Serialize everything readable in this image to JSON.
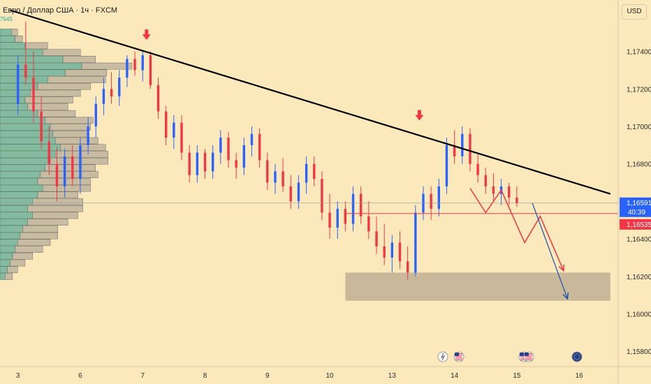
{
  "header": {
    "symbol_title": "Евро / Доллар США · 1ч · FXCM",
    "volume_profile_value": "7545",
    "currency_button": "USD"
  },
  "price_tags": {
    "last_price": "1,16591",
    "countdown": "40:39",
    "level_price": "1,16535"
  },
  "colors": {
    "background": "#fbe9bc",
    "up": "#2962ff",
    "down": "#f23645",
    "trendline": "#000000",
    "zone": "#c9b99a",
    "projection_red": "#f23645",
    "projection_blue": "#1e4fa8",
    "vp_up": "#6fb39b",
    "vp_down": "#bdb39c"
  },
  "event_icons": [
    "lightning-icon",
    "us-flag-icon",
    "us-flag-icon",
    "us-flag-icon",
    "eu-flag-icon"
  ],
  "chart_data": {
    "type": "candlestick",
    "title": "Евро / Доллар США · 1ч · FXCM",
    "ylim": [
      1.157,
      1.176
    ],
    "y_ticks": [
      "1,17400",
      "1,17200",
      "1,17000",
      "1,16800",
      "1,16600",
      "1,16400",
      "1,16200",
      "1,16000",
      "1,15800"
    ],
    "y_tick_values": [
      1.174,
      1.172,
      1.17,
      1.168,
      1.166,
      1.164,
      1.162,
      1.16,
      1.158
    ],
    "x_ticks": [
      "3",
      "6",
      "7",
      "8",
      "9",
      "10",
      "13",
      "14",
      "15",
      "16"
    ],
    "x_tick_values": [
      0,
      8,
      16,
      24,
      32,
      40,
      48,
      56,
      64,
      72
    ],
    "x_range": [
      -2.3,
      77
    ],
    "candles": [
      [
        1.1712,
        1.1738,
        1.1706,
        1.1733
      ],
      [
        1.1733,
        1.1756,
        1.1722,
        1.1726
      ],
      [
        1.1726,
        1.174,
        1.1702,
        1.1708
      ],
      [
        1.1708,
        1.1716,
        1.1688,
        1.1692
      ],
      [
        1.1692,
        1.17,
        1.1674,
        1.168
      ],
      [
        1.168,
        1.1689,
        1.166,
        1.1668
      ],
      [
        1.1668,
        1.1688,
        1.1662,
        1.1684
      ],
      [
        1.1684,
        1.169,
        1.1668,
        1.1672
      ],
      [
        1.1672,
        1.1694,
        1.1664,
        1.169
      ],
      [
        1.169,
        1.1705,
        1.1685,
        1.17
      ],
      [
        1.17,
        1.1716,
        1.1694,
        1.1712
      ],
      [
        1.1712,
        1.1726,
        1.1706,
        1.172
      ],
      [
        1.172,
        1.1729,
        1.1712,
        1.1716
      ],
      [
        1.1716,
        1.173,
        1.1711,
        1.1726
      ],
      [
        1.1726,
        1.1738,
        1.1721,
        1.1736
      ],
      [
        1.1736,
        1.174,
        1.1727,
        1.173
      ],
      [
        1.173,
        1.174,
        1.1724,
        1.1738
      ],
      [
        1.1738,
        1.174,
        1.172,
        1.1722
      ],
      [
        1.1722,
        1.1726,
        1.1704,
        1.1708
      ],
      [
        1.1708,
        1.1711,
        1.169,
        1.1694
      ],
      [
        1.1694,
        1.1706,
        1.1688,
        1.1702
      ],
      [
        1.1702,
        1.1706,
        1.1682,
        1.1686
      ],
      [
        1.1686,
        1.169,
        1.167,
        1.1674
      ],
      [
        1.1674,
        1.169,
        1.167,
        1.1686
      ],
      [
        1.1686,
        1.1688,
        1.1672,
        1.1676
      ],
      [
        1.1676,
        1.169,
        1.1672,
        1.1686
      ],
      [
        1.1686,
        1.1698,
        1.168,
        1.1694
      ],
      [
        1.1694,
        1.1697,
        1.1678,
        1.1682
      ],
      [
        1.1682,
        1.1686,
        1.1672,
        1.1678
      ],
      [
        1.1678,
        1.1694,
        1.1674,
        1.169
      ],
      [
        1.169,
        1.17,
        1.1684,
        1.1696
      ],
      [
        1.1696,
        1.1699,
        1.1678,
        1.1682
      ],
      [
        1.1682,
        1.1686,
        1.1666,
        1.167
      ],
      [
        1.167,
        1.168,
        1.1664,
        1.1676
      ],
      [
        1.1676,
        1.1683,
        1.1665,
        1.1668
      ],
      [
        1.1668,
        1.1674,
        1.1656,
        1.166
      ],
      [
        1.166,
        1.1674,
        1.1656,
        1.167
      ],
      [
        1.167,
        1.1684,
        1.1664,
        1.168
      ],
      [
        1.168,
        1.1684,
        1.1668,
        1.1672
      ],
      [
        1.1672,
        1.1676,
        1.165,
        1.1654
      ],
      [
        1.1654,
        1.1664,
        1.164,
        1.1646
      ],
      [
        1.1646,
        1.166,
        1.164,
        1.1656
      ],
      [
        1.1656,
        1.166,
        1.1644,
        1.1648
      ],
      [
        1.1648,
        1.1668,
        1.1644,
        1.1664
      ],
      [
        1.1664,
        1.1668,
        1.1648,
        1.1652
      ],
      [
        1.1652,
        1.166,
        1.164,
        1.1644
      ],
      [
        1.1644,
        1.1652,
        1.1632,
        1.1636
      ],
      [
        1.1636,
        1.1648,
        1.1626,
        1.163
      ],
      [
        1.163,
        1.1642,
        1.1622,
        1.1638
      ],
      [
        1.1638,
        1.1644,
        1.1624,
        1.1628
      ],
      [
        1.1628,
        1.1636,
        1.1618,
        1.1622
      ],
      [
        1.1622,
        1.1658,
        1.162,
        1.1654
      ],
      [
        1.1654,
        1.1668,
        1.165,
        1.1664
      ],
      [
        1.1664,
        1.1668,
        1.165,
        1.1656
      ],
      [
        1.1656,
        1.1672,
        1.1652,
        1.1668
      ],
      [
        1.1668,
        1.1694,
        1.1664,
        1.169
      ],
      [
        1.169,
        1.1698,
        1.168,
        1.1684
      ],
      [
        1.1684,
        1.17,
        1.168,
        1.1696
      ],
      [
        1.1696,
        1.1699,
        1.1676,
        1.168
      ],
      [
        1.168,
        1.1686,
        1.167,
        1.1674
      ],
      [
        1.1674,
        1.1678,
        1.1664,
        1.1668
      ],
      [
        1.1668,
        1.1675,
        1.166,
        1.1664
      ],
      [
        1.1664,
        1.1672,
        1.1658,
        1.1668
      ],
      [
        1.1668,
        1.167,
        1.1658,
        1.1662
      ],
      [
        1.1662,
        1.1668,
        1.1657,
        1.1659
      ]
    ],
    "trendline": [
      [
        -1,
        1.1762
      ],
      [
        76,
        1.1664
      ]
    ],
    "support_zone": {
      "x": [
        42,
        76
      ],
      "y": [
        1.1607,
        1.1622
      ]
    },
    "level_line": 1.16535,
    "last_price_line": 1.16591,
    "projection_red": [
      [
        58,
        1.1667
      ],
      [
        60,
        1.1654
      ],
      [
        62,
        1.1666
      ],
      [
        65,
        1.1638
      ],
      [
        67,
        1.1652
      ],
      [
        70,
        1.1623
      ]
    ],
    "projection_blue": [
      [
        66,
        1.1659
      ],
      [
        70.5,
        1.1608
      ]
    ],
    "markers": [
      [
        16.5,
        1.1748
      ],
      [
        51.5,
        1.1705
      ]
    ]
  },
  "volume_profile": [
    [
      0.9,
      0.5
    ],
    [
      1.2,
      0.6
    ],
    [
      2.0,
      1.8
    ],
    [
      3.4,
      3.0
    ],
    [
      5.0,
      2.6
    ],
    [
      6.5,
      4.0
    ],
    [
      5.2,
      3.3
    ],
    [
      3.8,
      4.6
    ],
    [
      3.0,
      4.2
    ],
    [
      2.4,
      4.0
    ],
    [
      2.0,
      3.8
    ],
    [
      2.2,
      3.2
    ],
    [
      3.0,
      3.0
    ],
    [
      3.6,
      3.8
    ],
    [
      4.0,
      3.2
    ],
    [
      4.2,
      2.8
    ],
    [
      4.4,
      3.4
    ],
    [
      4.8,
      3.6
    ],
    [
      4.4,
      4.2
    ],
    [
      4.0,
      4.6
    ],
    [
      3.6,
      4.0
    ],
    [
      3.2,
      4.6
    ],
    [
      3.0,
      4.2
    ],
    [
      3.4,
      3.8
    ],
    [
      3.0,
      3.2
    ],
    [
      2.6,
      4.0
    ],
    [
      2.2,
      4.4
    ],
    [
      2.6,
      3.6
    ],
    [
      2.2,
      3.2
    ],
    [
      1.8,
      2.8
    ],
    [
      1.6,
      3.0
    ],
    [
      1.4,
      2.6
    ],
    [
      1.2,
      2.2
    ],
    [
      1.0,
      1.6
    ],
    [
      0.8,
      1.2
    ],
    [
      0.6,
      0.8
    ],
    [
      0.4,
      0.6
    ]
  ]
}
